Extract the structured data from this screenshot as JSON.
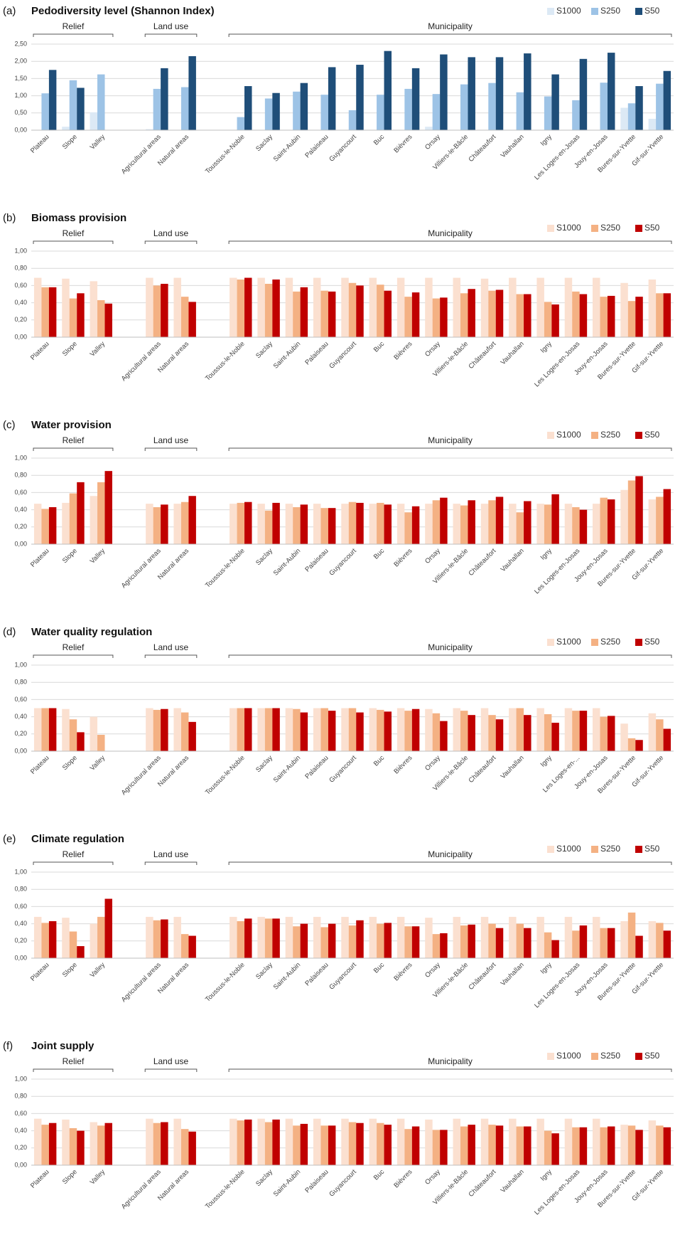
{
  "chart_data": [
    {
      "type": "bar",
      "panel": "(a)",
      "title": "Pedodiversity level (Shannon Index)",
      "groups": [
        "Relief",
        "Land use",
        "Municipality"
      ],
      "categories": [
        "Plateau",
        "Slope",
        "Valley",
        null,
        "Agricultural areas",
        "Natural areas",
        null,
        "Toussus-le-Noble",
        "Saclay",
        "Saint-Aubin",
        "Palaiseau",
        "Guyancourt",
        "Buc",
        "Bièvres",
        "Orsay",
        "Villiers-le-Bâcle",
        "Châteaufort",
        "Vauhallan",
        "Igny",
        "Les Loges-en-Josas",
        "Jouy-en-Josas",
        "Bures-sur-Yvette",
        "Gif-sur-Yvette"
      ],
      "series": [
        {
          "name": "S1000",
          "color": "#dce9f5",
          "values": [
            0,
            0.1,
            0.52,
            null,
            0.03,
            0,
            null,
            0,
            0,
            0,
            0,
            0,
            0,
            0,
            0.1,
            0,
            0,
            0,
            0,
            0,
            0,
            0.65,
            0.33
          ]
        },
        {
          "name": "S250",
          "color": "#9dc3e6",
          "values": [
            1.07,
            1.45,
            1.62,
            null,
            1.2,
            1.25,
            null,
            0.38,
            0.92,
            1.12,
            1.03,
            0.58,
            1.03,
            1.2,
            1.05,
            1.33,
            1.37,
            1.1,
            0.98,
            0.87,
            1.38,
            0.78,
            1.35
          ]
        },
        {
          "name": "S50",
          "color": "#1f4e79",
          "values": [
            1.75,
            1.23,
            0,
            null,
            1.8,
            2.15,
            null,
            1.28,
            1.08,
            1.37,
            1.83,
            1.9,
            2.3,
            1.8,
            2.2,
            2.12,
            2.12,
            2.23,
            1.62,
            2.07,
            2.25,
            1.28,
            1.72
          ]
        }
      ],
      "ylim": [
        0,
        2.5
      ],
      "yticks": [
        {
          "value": 0,
          "label": "0,00"
        },
        {
          "value": 0.5,
          "label": "0,50"
        },
        {
          "value": 1,
          "label": "1,00"
        },
        {
          "value": 1.5,
          "label": "1,50"
        },
        {
          "value": 2,
          "label": "2,00"
        },
        {
          "value": 2.5,
          "label": "2,50"
        }
      ],
      "grid": true
    },
    {
      "type": "bar",
      "panel": "(b)",
      "title": "Biomass provision",
      "groups": [
        "Relief",
        "Land use",
        "Municipality"
      ],
      "categories": [
        "Plateau",
        "Slope",
        "Valley",
        null,
        "Agricultural areas",
        "Natural areas",
        null,
        "Toussus-le-Noble",
        "Saclay",
        "Saint-Aubin",
        "Palaiseau",
        "Guyancourt",
        "Buc",
        "Bièvres",
        "Orsay",
        "Villiers-le-Bâcle",
        "Châteaufort",
        "Vauhallan",
        "Igny",
        "Les Loges-en-Josas",
        "Jouy-en-Josas",
        "Bures-sur-Yvette",
        "Gif-sur-Yvette"
      ],
      "series": [
        {
          "name": "S1000",
          "color": "#fbe0d0",
          "values": [
            0.69,
            0.68,
            0.65,
            null,
            0.69,
            0.69,
            null,
            0.69,
            0.69,
            0.69,
            0.69,
            0.69,
            0.69,
            0.69,
            0.69,
            0.69,
            0.68,
            0.69,
            0.69,
            0.69,
            0.69,
            0.63,
            0.67
          ]
        },
        {
          "name": "S250",
          "color": "#f4b183",
          "values": [
            0.58,
            0.45,
            0.43,
            null,
            0.6,
            0.47,
            null,
            0.67,
            0.62,
            0.53,
            0.54,
            0.63,
            0.61,
            0.47,
            0.45,
            0.51,
            0.54,
            0.5,
            0.41,
            0.53,
            0.47,
            0.42,
            0.51
          ]
        },
        {
          "name": "S50",
          "color": "#c00000",
          "values": [
            0.58,
            0.51,
            0.39,
            null,
            0.62,
            0.41,
            null,
            0.69,
            0.67,
            0.58,
            0.53,
            0.6,
            0.54,
            0.52,
            0.46,
            0.56,
            0.55,
            0.5,
            0.38,
            0.5,
            0.48,
            0.47,
            0.51
          ]
        }
      ],
      "ylim": [
        0,
        1
      ],
      "yticks": [
        {
          "value": 0,
          "label": "0,00"
        },
        {
          "value": 0.2,
          "label": "0,20"
        },
        {
          "value": 0.4,
          "label": "0,40"
        },
        {
          "value": 0.6,
          "label": "0,60"
        },
        {
          "value": 0.8,
          "label": "0,80"
        },
        {
          "value": 1,
          "label": "1,00"
        }
      ],
      "grid": true
    },
    {
      "type": "bar",
      "panel": "(c)",
      "title": "Water provision",
      "groups": [
        "Relief",
        "Land use",
        "Municipality"
      ],
      "categories": [
        "Plateau",
        "Slope",
        "Valley",
        null,
        "Agricultural areas",
        "Natural areas",
        null,
        "Toussus-le-Noble",
        "Saclay",
        "Saint-Aubin",
        "Palaiseau",
        "Guyancourt",
        "Buc",
        "Bièvres",
        "Orsay",
        "Villiers-le-Bâcle",
        "Châteaufort",
        "Vauhallan",
        "Igny",
        "Les Loges-en-Josas",
        "Jouy-en-Josas",
        "Bures-sur-Yvette",
        "Gif-sur-Yvette"
      ],
      "series": [
        {
          "name": "S1000",
          "color": "#fbe0d0",
          "values": [
            0.47,
            0.48,
            0.56,
            null,
            0.47,
            0.47,
            null,
            0.47,
            0.47,
            0.47,
            0.47,
            0.47,
            0.47,
            0.47,
            0.47,
            0.47,
            0.47,
            0.47,
            0.47,
            0.47,
            0.47,
            0.63,
            0.52
          ]
        },
        {
          "name": "S250",
          "color": "#f4b183",
          "values": [
            0.41,
            0.59,
            0.72,
            null,
            0.43,
            0.49,
            null,
            0.48,
            0.39,
            0.43,
            0.42,
            0.49,
            0.48,
            0.37,
            0.51,
            0.45,
            0.51,
            0.37,
            0.46,
            0.43,
            0.54,
            0.74,
            0.55
          ]
        },
        {
          "name": "S50",
          "color": "#c00000",
          "values": [
            0.43,
            0.72,
            0.85,
            null,
            0.46,
            0.56,
            null,
            0.49,
            0.48,
            0.46,
            0.42,
            0.48,
            0.46,
            0.44,
            0.54,
            0.51,
            0.55,
            0.5,
            0.58,
            0.4,
            0.52,
            0.79,
            0.64
          ]
        }
      ],
      "ylim": [
        0,
        1
      ],
      "yticks": [
        {
          "value": 0,
          "label": "0,00"
        },
        {
          "value": 0.2,
          "label": "0,20"
        },
        {
          "value": 0.4,
          "label": "0,40"
        },
        {
          "value": 0.6,
          "label": "0,60"
        },
        {
          "value": 0.8,
          "label": "0,80"
        },
        {
          "value": 1,
          "label": "1,00"
        }
      ],
      "grid": true
    },
    {
      "type": "bar",
      "panel": "(d)",
      "title": "Water quality regulation",
      "groups": [
        "Relief",
        "Land use",
        "Municipality"
      ],
      "categories": [
        "Plateau",
        "Slope",
        "Valley",
        null,
        "Agricultural areas",
        "Natural areas",
        null,
        "Toussus-le-Noble",
        "Saclay",
        "Saint-Aubin",
        "Palaiseau",
        "Guyancourt",
        "Buc",
        "Bièvres",
        "Orsay",
        "Villiers-le-Bâcle",
        "Châteaufort",
        "Vauhallan",
        "Igny",
        "Les Loges-en-...",
        "Jouy-en-Josas",
        "Bures-sur-Yvette",
        "Gif-sur-Yvette"
      ],
      "series": [
        {
          "name": "S1000",
          "color": "#fbe0d0",
          "values": [
            0.5,
            0.49,
            0.4,
            null,
            0.5,
            0.5,
            null,
            0.5,
            0.5,
            0.5,
            0.5,
            0.5,
            0.5,
            0.5,
            0.49,
            0.5,
            0.5,
            0.5,
            0.5,
            0.5,
            0.5,
            0.32,
            0.44
          ]
        },
        {
          "name": "S250",
          "color": "#f4b183",
          "values": [
            0.5,
            0.37,
            0.19,
            null,
            0.48,
            0.45,
            null,
            0.5,
            0.5,
            0.49,
            0.5,
            0.5,
            0.48,
            0.47,
            0.44,
            0.47,
            0.42,
            0.5,
            0.43,
            0.47,
            0.4,
            0.15,
            0.37
          ]
        },
        {
          "name": "S50",
          "color": "#c00000",
          "values": [
            0.5,
            0.22,
            0,
            null,
            0.49,
            0.34,
            null,
            0.5,
            0.5,
            0.45,
            0.47,
            0.45,
            0.46,
            0.49,
            0.35,
            0.42,
            0.37,
            0.42,
            0.33,
            0.47,
            0.41,
            0.13,
            0.26
          ]
        }
      ],
      "ylim": [
        0,
        1
      ],
      "yticks": [
        {
          "value": 0,
          "label": "0,00"
        },
        {
          "value": 0.2,
          "label": "0,20"
        },
        {
          "value": 0.4,
          "label": "0,40"
        },
        {
          "value": 0.6,
          "label": "0,60"
        },
        {
          "value": 0.8,
          "label": "0,80"
        },
        {
          "value": 1,
          "label": "1,00"
        }
      ],
      "grid": true
    },
    {
      "type": "bar",
      "panel": "(e)",
      "title": "Climate regulation",
      "groups": [
        "Relief",
        "Land use",
        "Municipality"
      ],
      "categories": [
        "Plateau",
        "Slope",
        "Valley",
        null,
        "Agricultural areas",
        "Natural areas",
        null,
        "Toussus-le-Noble",
        "Saclay",
        "Saint-Aubin",
        "Palaiseau",
        "Guyancourt",
        "Buc",
        "Bièvres",
        "Orsay",
        "Villiers-le-Bâcle",
        "Châteaufort",
        "Vauhallan",
        "Igny",
        "Les Loges-en-Josas",
        "Jouy-en-Josas",
        "Bures-sur-Yvette",
        "Gif-sur-Yvette"
      ],
      "series": [
        {
          "name": "S1000",
          "color": "#fbe0d0",
          "values": [
            0.48,
            0.47,
            0.4,
            null,
            0.48,
            0.48,
            null,
            0.48,
            0.48,
            0.48,
            0.48,
            0.48,
            0.48,
            0.48,
            0.47,
            0.48,
            0.48,
            0.48,
            0.48,
            0.48,
            0.48,
            0.43,
            0.43
          ]
        },
        {
          "name": "S250",
          "color": "#f4b183",
          "values": [
            0.41,
            0.31,
            0.48,
            null,
            0.44,
            0.28,
            null,
            0.43,
            0.46,
            0.37,
            0.36,
            0.38,
            0.4,
            0.37,
            0.28,
            0.38,
            0.4,
            0.4,
            0.3,
            0.32,
            0.35,
            0.53,
            0.41
          ]
        },
        {
          "name": "S50",
          "color": "#c00000",
          "values": [
            0.43,
            0.14,
            0.69,
            null,
            0.45,
            0.26,
            null,
            0.46,
            0.46,
            0.4,
            0.4,
            0.44,
            0.41,
            0.37,
            0.29,
            0.39,
            0.35,
            0.35,
            0.21,
            0.38,
            0.35,
            0.26,
            0.32
          ]
        }
      ],
      "ylim": [
        0,
        1
      ],
      "yticks": [
        {
          "value": 0,
          "label": "0,00"
        },
        {
          "value": 0.2,
          "label": "0,20"
        },
        {
          "value": 0.4,
          "label": "0,40"
        },
        {
          "value": 0.6,
          "label": "0,60"
        },
        {
          "value": 0.8,
          "label": "0,80"
        },
        {
          "value": 1,
          "label": "1,00"
        }
      ],
      "grid": true
    },
    {
      "type": "bar",
      "panel": "(f)",
      "title": "Joint supply",
      "groups": [
        "Relief",
        "Land use",
        "Municipality"
      ],
      "categories": [
        "Plateau",
        "Slope",
        "Valley",
        null,
        "Agricultural areas",
        "Natural areas",
        null,
        "Toussus-le-Noble",
        "Saclay",
        "Saint-Aubin",
        "Palaiseau",
        "Guyancourt",
        "Buc",
        "Bièvres",
        "Orsay",
        "Villiers-le-Bâcle",
        "Châteaufort",
        "Vauhallan",
        "Igny",
        "Les Loges-en-Josas",
        "Jouy-en-Josas",
        "Bures-sur-Yvette",
        "Gif-sur-Yvette"
      ],
      "series": [
        {
          "name": "S1000",
          "color": "#fbe0d0",
          "values": [
            0.54,
            0.53,
            0.5,
            null,
            0.54,
            0.54,
            null,
            0.54,
            0.54,
            0.54,
            0.54,
            0.54,
            0.54,
            0.54,
            0.53,
            0.54,
            0.54,
            0.54,
            0.54,
            0.54,
            0.54,
            0.47,
            0.52
          ]
        },
        {
          "name": "S250",
          "color": "#f4b183",
          "values": [
            0.47,
            0.43,
            0.46,
            null,
            0.49,
            0.42,
            null,
            0.52,
            0.5,
            0.46,
            0.46,
            0.5,
            0.49,
            0.42,
            0.41,
            0.45,
            0.47,
            0.45,
            0.4,
            0.44,
            0.44,
            0.46,
            0.46
          ]
        },
        {
          "name": "S50",
          "color": "#c00000",
          "values": [
            0.49,
            0.4,
            0.49,
            null,
            0.5,
            0.39,
            null,
            0.53,
            0.53,
            0.48,
            0.46,
            0.49,
            0.47,
            0.45,
            0.41,
            0.47,
            0.46,
            0.45,
            0.37,
            0.44,
            0.45,
            0.41,
            0.44
          ]
        }
      ],
      "ylim": [
        0,
        1
      ],
      "yticks": [
        {
          "value": 0,
          "label": "0,00"
        },
        {
          "value": 0.2,
          "label": "0,20"
        },
        {
          "value": 0.4,
          "label": "0,40"
        },
        {
          "value": 0.6,
          "label": "0,60"
        },
        {
          "value": 0.8,
          "label": "0,80"
        },
        {
          "value": 1,
          "label": "1,00"
        }
      ],
      "grid": true
    }
  ]
}
